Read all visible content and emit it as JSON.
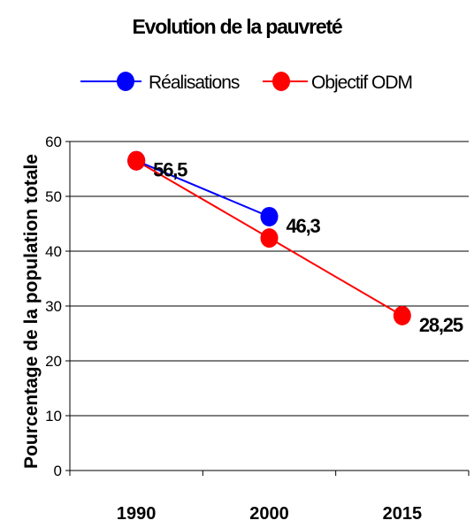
{
  "chart_data": {
    "type": "line",
    "title": "Evolution de la pauvreté",
    "ylabel": "Pourcentage de la population totale",
    "xlabel": "",
    "categories": [
      "1990",
      "2000",
      "2015"
    ],
    "ylim": [
      0,
      60
    ],
    "yticks": [
      0,
      10,
      20,
      30,
      40,
      50,
      60
    ],
    "grid": true,
    "legend_position": "top",
    "series": [
      {
        "name": "Réalisations",
        "color": "#0000ff",
        "values": [
          56.5,
          46.3,
          null
        ],
        "labels": [
          "56,5",
          "46,3",
          null
        ]
      },
      {
        "name": "Objectif ODM",
        "color": "#ff0000",
        "values": [
          56.5,
          42.4,
          28.25
        ],
        "labels": [
          null,
          null,
          "28,25"
        ]
      }
    ]
  }
}
